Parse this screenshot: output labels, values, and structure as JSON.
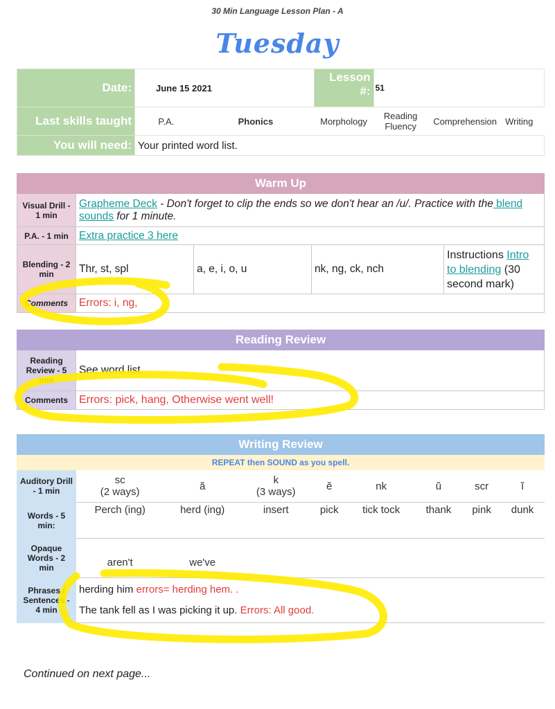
{
  "doc_title": "30 Min Language Lesson Plan - A",
  "day": "Tuesday",
  "info": {
    "date_label": "Date:",
    "date": "June 15  2021",
    "lesson_label": "Lesson #:",
    "lesson": "51",
    "skills_label": "Last skills taught",
    "skills": [
      "P.A.",
      "Phonics",
      "Morphology",
      "Reading Fluency",
      "Comprehension",
      "Writing"
    ],
    "selected_skill": "Phonics",
    "need_label": "You will need:",
    "need": "Your printed word list."
  },
  "warmup": {
    "title": "Warm Up",
    "visual_label": "Visual Drill - 1 min",
    "visual_link": "Grapheme Deck",
    "visual_text": " - Don't forget to clip the ends so we don't hear an /u/. Practice with the",
    "visual_link2": " blend sounds",
    "visual_text2": " for 1 minute.",
    "pa_label": "P.A. - 1 min",
    "pa_link": "Extra practice 3 here",
    "blend_label": "Blending - 2 min",
    "blend": [
      "Thr, st, spl",
      "a, e, i, o, u",
      "nk, ng, ck, nch"
    ],
    "blend_instr": "Instructions ",
    "blend_link": "Intro to blending",
    "blend_instr2": " (30 second mark)",
    "comments_label": "Comments",
    "comments": "Errors: i, ng,"
  },
  "reading": {
    "title": "Reading Review",
    "label": "Reading Review - 5 min",
    "text": "See word list.",
    "comments_label": "Comments",
    "comments": "Errors: pick, hang, Otherwise went well!"
  },
  "writing": {
    "title": "Writing Review",
    "subtitle": "REPEAT then SOUND as you spell.",
    "auditory_label": "Auditory Drill - 1 min",
    "auditory": [
      "sc\n(2 ways)",
      "ă",
      "k\n(3 ways)",
      "ĕ",
      "nk",
      "ŭ",
      "scr",
      "ĭ"
    ],
    "words_label": "Words - 5 min:",
    "words": [
      "Perch (ing)",
      "herd (ing)",
      "insert",
      "pick",
      "tick tock",
      "thank",
      "pink",
      "dunk"
    ],
    "opaque_label": "Opaque Words - 2 min",
    "opaque": [
      "aren't",
      "we've"
    ],
    "phrases_label": "Phrases / Sentences - 4 min",
    "phrase1": "herding him ",
    "phrase1_err": "errors= herding hem. .",
    "phrase2": "The tank fell as I was picking it up. ",
    "phrase2_err": "Errors: All good."
  },
  "footer": "Continued on next page...",
  "colors": {
    "green": "#b6d7a8",
    "pink": "#d5a6bd",
    "purple": "#b4a7d6",
    "blue": "#9fc5e8",
    "highlight": "#ffeb00",
    "error": "#e03c3c"
  }
}
